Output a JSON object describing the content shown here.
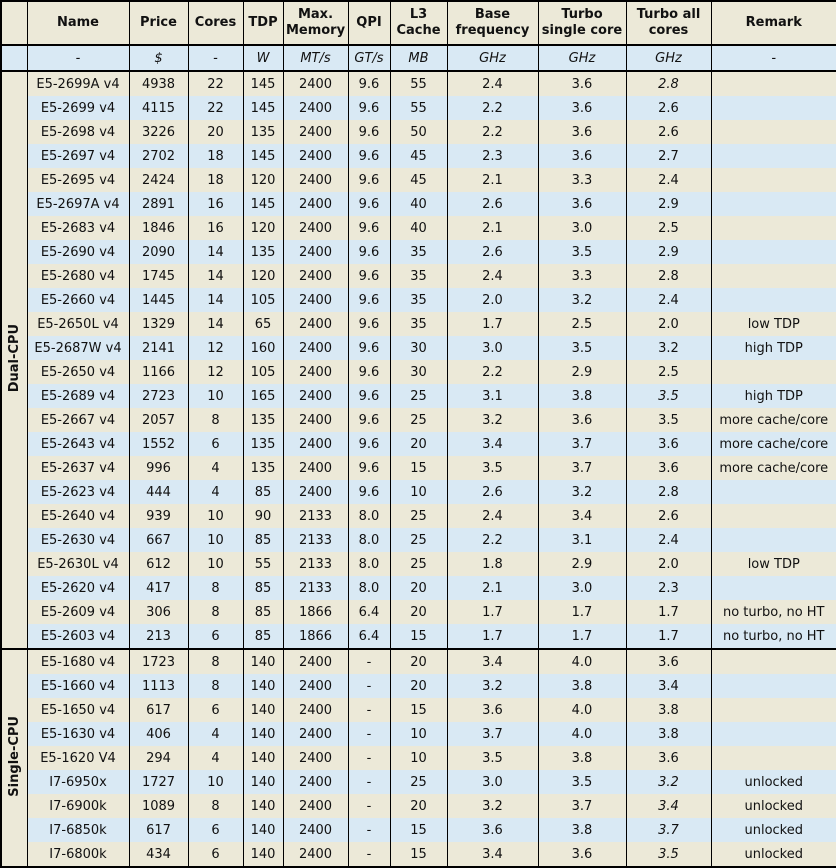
{
  "colors": {
    "row_beige": "#ece9d8",
    "row_blue": "#d9e9f4",
    "group_peach": "#fce4d1",
    "border": "#000000",
    "text": "#111111"
  },
  "chart_data": {
    "type": "table",
    "columns": [
      {
        "label": "Name",
        "unit": "-"
      },
      {
        "label": "Price",
        "unit": "$"
      },
      {
        "label": "Cores",
        "unit": "-"
      },
      {
        "label": "TDP",
        "unit": "W"
      },
      {
        "label": "Max. Memory",
        "unit": "MT/s"
      },
      {
        "label": "QPI",
        "unit": "GT/s"
      },
      {
        "label": "L3 Cache",
        "unit": "MB"
      },
      {
        "label": "Base frequency",
        "unit": "GHz"
      },
      {
        "label": "Turbo single core",
        "unit": "GHz"
      },
      {
        "label": "Turbo all cores",
        "unit": "GHz"
      },
      {
        "label": "Remark",
        "unit": "-"
      }
    ],
    "sections": [
      {
        "label": "Dual-CPU",
        "rows": [
          {
            "name": "E5-2699A v4",
            "price": "4938",
            "cores": "22",
            "tdp": "145",
            "max_memory": "2400",
            "qpi": "9.6",
            "l3_cache": "55",
            "base_frequency": "2.4",
            "turbo_single_core": "3.6",
            "turbo_all_cores": "2.8",
            "turbo_all_italic": true,
            "remark": ""
          },
          {
            "name": "E5-2699 v4",
            "price": "4115",
            "cores": "22",
            "tdp": "145",
            "max_memory": "2400",
            "qpi": "9.6",
            "l3_cache": "55",
            "base_frequency": "2.2",
            "turbo_single_core": "3.6",
            "turbo_all_cores": "2.6",
            "turbo_all_italic": false,
            "remark": ""
          },
          {
            "name": "E5-2698 v4",
            "price": "3226",
            "cores": "20",
            "tdp": "135",
            "max_memory": "2400",
            "qpi": "9.6",
            "l3_cache": "50",
            "base_frequency": "2.2",
            "turbo_single_core": "3.6",
            "turbo_all_cores": "2.6",
            "turbo_all_italic": false,
            "remark": ""
          },
          {
            "name": "E5-2697 v4",
            "price": "2702",
            "cores": "18",
            "tdp": "145",
            "max_memory": "2400",
            "qpi": "9.6",
            "l3_cache": "45",
            "base_frequency": "2.3",
            "turbo_single_core": "3.6",
            "turbo_all_cores": "2.7",
            "turbo_all_italic": false,
            "remark": ""
          },
          {
            "name": "E5-2695 v4",
            "price": "2424",
            "cores": "18",
            "tdp": "120",
            "max_memory": "2400",
            "qpi": "9.6",
            "l3_cache": "45",
            "base_frequency": "2.1",
            "turbo_single_core": "3.3",
            "turbo_all_cores": "2.4",
            "turbo_all_italic": false,
            "remark": ""
          },
          {
            "name": "E5-2697A v4",
            "price": "2891",
            "cores": "16",
            "tdp": "145",
            "max_memory": "2400",
            "qpi": "9.6",
            "l3_cache": "40",
            "base_frequency": "2.6",
            "turbo_single_core": "3.6",
            "turbo_all_cores": "2.9",
            "turbo_all_italic": false,
            "remark": ""
          },
          {
            "name": "E5-2683 v4",
            "price": "1846",
            "cores": "16",
            "tdp": "120",
            "max_memory": "2400",
            "qpi": "9.6",
            "l3_cache": "40",
            "base_frequency": "2.1",
            "turbo_single_core": "3.0",
            "turbo_all_cores": "2.5",
            "turbo_all_italic": false,
            "remark": ""
          },
          {
            "name": "E5-2690 v4",
            "price": "2090",
            "cores": "14",
            "tdp": "135",
            "max_memory": "2400",
            "qpi": "9.6",
            "l3_cache": "35",
            "base_frequency": "2.6",
            "turbo_single_core": "3.5",
            "turbo_all_cores": "2.9",
            "turbo_all_italic": false,
            "remark": ""
          },
          {
            "name": "E5-2680 v4",
            "price": "1745",
            "cores": "14",
            "tdp": "120",
            "max_memory": "2400",
            "qpi": "9.6",
            "l3_cache": "35",
            "base_frequency": "2.4",
            "turbo_single_core": "3.3",
            "turbo_all_cores": "2.8",
            "turbo_all_italic": false,
            "remark": ""
          },
          {
            "name": "E5-2660 v4",
            "price": "1445",
            "cores": "14",
            "tdp": "105",
            "max_memory": "2400",
            "qpi": "9.6",
            "l3_cache": "35",
            "base_frequency": "2.0",
            "turbo_single_core": "3.2",
            "turbo_all_cores": "2.4",
            "turbo_all_italic": false,
            "remark": ""
          },
          {
            "name": "E5-2650L v4",
            "price": "1329",
            "cores": "14",
            "tdp": "65",
            "max_memory": "2400",
            "qpi": "9.6",
            "l3_cache": "35",
            "base_frequency": "1.7",
            "turbo_single_core": "2.5",
            "turbo_all_cores": "2.0",
            "turbo_all_italic": false,
            "remark": "low TDP"
          },
          {
            "name": "E5-2687W v4",
            "price": "2141",
            "cores": "12",
            "tdp": "160",
            "max_memory": "2400",
            "qpi": "9.6",
            "l3_cache": "30",
            "base_frequency": "3.0",
            "turbo_single_core": "3.5",
            "turbo_all_cores": "3.2",
            "turbo_all_italic": false,
            "remark": "high TDP"
          },
          {
            "name": "E5-2650 v4",
            "price": "1166",
            "cores": "12",
            "tdp": "105",
            "max_memory": "2400",
            "qpi": "9.6",
            "l3_cache": "30",
            "base_frequency": "2.2",
            "turbo_single_core": "2.9",
            "turbo_all_cores": "2.5",
            "turbo_all_italic": false,
            "remark": ""
          },
          {
            "name": "E5-2689 v4",
            "price": "2723",
            "cores": "10",
            "tdp": "165",
            "max_memory": "2400",
            "qpi": "9.6",
            "l3_cache": "25",
            "base_frequency": "3.1",
            "turbo_single_core": "3.8",
            "turbo_all_cores": "3.5",
            "turbo_all_italic": true,
            "remark": "high TDP"
          },
          {
            "name": "E5-2667 v4",
            "price": "2057",
            "cores": "8",
            "tdp": "135",
            "max_memory": "2400",
            "qpi": "9.6",
            "l3_cache": "25",
            "base_frequency": "3.2",
            "turbo_single_core": "3.6",
            "turbo_all_cores": "3.5",
            "turbo_all_italic": false,
            "remark": "more cache/core"
          },
          {
            "name": "E5-2643 v4",
            "price": "1552",
            "cores": "6",
            "tdp": "135",
            "max_memory": "2400",
            "qpi": "9.6",
            "l3_cache": "20",
            "base_frequency": "3.4",
            "turbo_single_core": "3.7",
            "turbo_all_cores": "3.6",
            "turbo_all_italic": false,
            "remark": "more cache/core"
          },
          {
            "name": "E5-2637 v4",
            "price": "996",
            "cores": "4",
            "tdp": "135",
            "max_memory": "2400",
            "qpi": "9.6",
            "l3_cache": "15",
            "base_frequency": "3.5",
            "turbo_single_core": "3.7",
            "turbo_all_cores": "3.6",
            "turbo_all_italic": false,
            "remark": "more cache/core"
          },
          {
            "name": "E5-2623 v4",
            "price": "444",
            "cores": "4",
            "tdp": "85",
            "max_memory": "2400",
            "qpi": "9.6",
            "l3_cache": "10",
            "base_frequency": "2.6",
            "turbo_single_core": "3.2",
            "turbo_all_cores": "2.8",
            "turbo_all_italic": false,
            "remark": ""
          },
          {
            "name": "E5-2640 v4",
            "price": "939",
            "cores": "10",
            "tdp": "90",
            "max_memory": "2133",
            "qpi": "8.0",
            "l3_cache": "25",
            "base_frequency": "2.4",
            "turbo_single_core": "3.4",
            "turbo_all_cores": "2.6",
            "turbo_all_italic": false,
            "remark": ""
          },
          {
            "name": "E5-2630 v4",
            "price": "667",
            "cores": "10",
            "tdp": "85",
            "max_memory": "2133",
            "qpi": "8.0",
            "l3_cache": "25",
            "base_frequency": "2.2",
            "turbo_single_core": "3.1",
            "turbo_all_cores": "2.4",
            "turbo_all_italic": false,
            "remark": ""
          },
          {
            "name": "E5-2630L v4",
            "price": "612",
            "cores": "10",
            "tdp": "55",
            "max_memory": "2133",
            "qpi": "8.0",
            "l3_cache": "25",
            "base_frequency": "1.8",
            "turbo_single_core": "2.9",
            "turbo_all_cores": "2.0",
            "turbo_all_italic": false,
            "remark": "low TDP"
          },
          {
            "name": "E5-2620 v4",
            "price": "417",
            "cores": "8",
            "tdp": "85",
            "max_memory": "2133",
            "qpi": "8.0",
            "l3_cache": "20",
            "base_frequency": "2.1",
            "turbo_single_core": "3.0",
            "turbo_all_cores": "2.3",
            "turbo_all_italic": false,
            "remark": ""
          },
          {
            "name": "E5-2609 v4",
            "price": "306",
            "cores": "8",
            "tdp": "85",
            "max_memory": "1866",
            "qpi": "6.4",
            "l3_cache": "20",
            "base_frequency": "1.7",
            "turbo_single_core": "1.7",
            "turbo_all_cores": "1.7",
            "turbo_all_italic": false,
            "remark": "no turbo, no HT"
          },
          {
            "name": "E5-2603 v4",
            "price": "213",
            "cores": "6",
            "tdp": "85",
            "max_memory": "1866",
            "qpi": "6.4",
            "l3_cache": "15",
            "base_frequency": "1.7",
            "turbo_single_core": "1.7",
            "turbo_all_cores": "1.7",
            "turbo_all_italic": false,
            "remark": "no turbo, no HT"
          }
        ]
      },
      {
        "label": "Single-CPU",
        "rows": [
          {
            "name": "E5-1680 v4",
            "price": "1723",
            "cores": "8",
            "tdp": "140",
            "max_memory": "2400",
            "qpi": "-",
            "l3_cache": "20",
            "base_frequency": "3.4",
            "turbo_single_core": "4.0",
            "turbo_all_cores": "3.6",
            "turbo_all_italic": false,
            "remark": ""
          },
          {
            "name": "E5-1660 v4",
            "price": "1113",
            "cores": "8",
            "tdp": "140",
            "max_memory": "2400",
            "qpi": "-",
            "l3_cache": "20",
            "base_frequency": "3.2",
            "turbo_single_core": "3.8",
            "turbo_all_cores": "3.4",
            "turbo_all_italic": false,
            "remark": ""
          },
          {
            "name": "E5-1650 v4",
            "price": "617",
            "cores": "6",
            "tdp": "140",
            "max_memory": "2400",
            "qpi": "-",
            "l3_cache": "15",
            "base_frequency": "3.6",
            "turbo_single_core": "4.0",
            "turbo_all_cores": "3.8",
            "turbo_all_italic": false,
            "remark": ""
          },
          {
            "name": "E5-1630 v4",
            "price": "406",
            "cores": "4",
            "tdp": "140",
            "max_memory": "2400",
            "qpi": "-",
            "l3_cache": "10",
            "base_frequency": "3.7",
            "turbo_single_core": "4.0",
            "turbo_all_cores": "3.8",
            "turbo_all_italic": false,
            "remark": ""
          },
          {
            "name": "E5-1620 V4",
            "price": "294",
            "cores": "4",
            "tdp": "140",
            "max_memory": "2400",
            "qpi": "-",
            "l3_cache": "10",
            "base_frequency": "3.5",
            "turbo_single_core": "3.8",
            "turbo_all_cores": "3.6",
            "turbo_all_italic": false,
            "remark": ""
          },
          {
            "name": "I7-6950x",
            "price": "1727",
            "cores": "10",
            "tdp": "140",
            "max_memory": "2400",
            "qpi": "-",
            "l3_cache": "25",
            "base_frequency": "3.0",
            "turbo_single_core": "3.5",
            "turbo_all_cores": "3.2",
            "turbo_all_italic": true,
            "remark": "unlocked"
          },
          {
            "name": "I7-6900k",
            "price": "1089",
            "cores": "8",
            "tdp": "140",
            "max_memory": "2400",
            "qpi": "-",
            "l3_cache": "20",
            "base_frequency": "3.2",
            "turbo_single_core": "3.7",
            "turbo_all_cores": "3.4",
            "turbo_all_italic": true,
            "remark": "unlocked"
          },
          {
            "name": "I7-6850k",
            "price": "617",
            "cores": "6",
            "tdp": "140",
            "max_memory": "2400",
            "qpi": "-",
            "l3_cache": "15",
            "base_frequency": "3.6",
            "turbo_single_core": "3.8",
            "turbo_all_cores": "3.7",
            "turbo_all_italic": true,
            "remark": "unlocked"
          },
          {
            "name": "I7-6800k",
            "price": "434",
            "cores": "6",
            "tdp": "140",
            "max_memory": "2400",
            "qpi": "-",
            "l3_cache": "15",
            "base_frequency": "3.4",
            "turbo_single_core": "3.6",
            "turbo_all_cores": "3.5",
            "turbo_all_italic": true,
            "remark": "unlocked"
          }
        ]
      }
    ]
  }
}
